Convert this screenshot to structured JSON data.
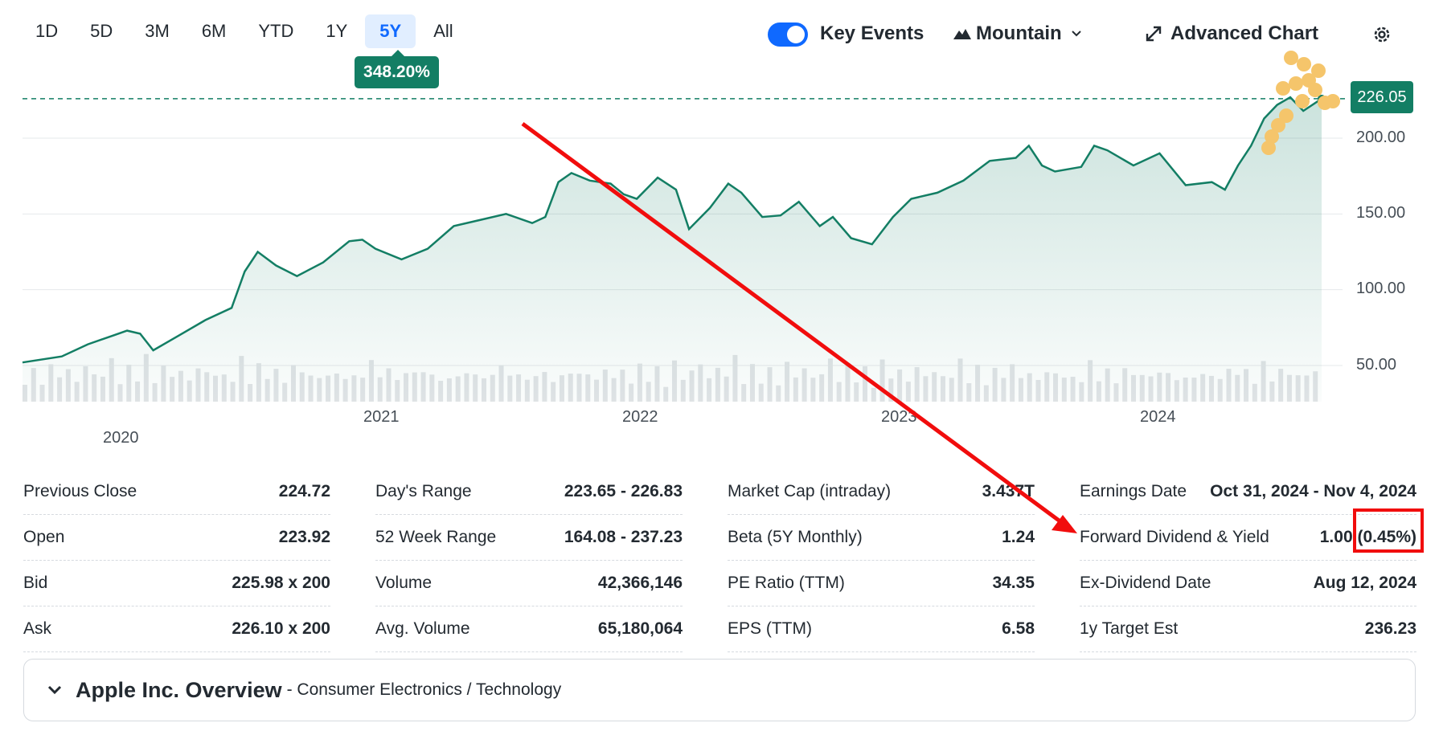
{
  "toolbar": {
    "periods": [
      "1D",
      "5D",
      "3M",
      "6M",
      "YTD",
      "1Y",
      "5Y",
      "All"
    ],
    "active_period": "5Y",
    "change_badge": "348.20%",
    "key_events_label": "Key Events",
    "key_events_on": true,
    "chart_type_label": "Mountain",
    "advanced_label": "Advanced Chart"
  },
  "chart_data": {
    "type": "area",
    "current_price_label": "226.05",
    "current_price": 226.05,
    "y_ticks": [
      "200.00",
      "150.00",
      "100.00",
      "50.00"
    ],
    "x_ticks": [
      "2020",
      "2021",
      "2022",
      "2023",
      "2024"
    ],
    "ylim": [
      30,
      240
    ],
    "x": [
      2019.75,
      2019.9,
      2020.0,
      2020.1,
      2020.15,
      2020.2,
      2020.25,
      2020.35,
      2020.45,
      2020.55,
      2020.6,
      2020.65,
      2020.72,
      2020.8,
      2020.9,
      2021.0,
      2021.05,
      2021.1,
      2021.2,
      2021.3,
      2021.4,
      2021.5,
      2021.6,
      2021.7,
      2021.75,
      2021.8,
      2021.85,
      2021.92,
      2022.0,
      2022.05,
      2022.1,
      2022.18,
      2022.25,
      2022.3,
      2022.38,
      2022.45,
      2022.5,
      2022.58,
      2022.65,
      2022.72,
      2022.8,
      2022.85,
      2022.92,
      2023.0,
      2023.08,
      2023.15,
      2023.25,
      2023.35,
      2023.45,
      2023.55,
      2023.6,
      2023.65,
      2023.7,
      2023.8,
      2023.85,
      2023.9,
      2024.0,
      2024.1,
      2024.2,
      2024.3,
      2024.35,
      2024.4,
      2024.45,
      2024.5,
      2024.55,
      2024.6,
      2024.65,
      2024.72
    ],
    "prices": [
      52,
      56,
      64,
      70,
      73,
      71,
      60,
      70,
      80,
      88,
      112,
      125,
      116,
      109,
      118,
      132,
      133,
      127,
      120,
      127,
      142,
      146,
      150,
      144,
      148,
      171,
      177,
      172,
      170,
      163,
      160,
      174,
      166,
      140,
      154,
      170,
      164,
      148,
      149,
      158,
      142,
      148,
      134,
      130,
      148,
      160,
      164,
      172,
      185,
      187,
      195,
      182,
      178,
      181,
      195,
      192,
      182,
      190,
      169,
      171,
      166,
      182,
      195,
      213,
      222,
      227,
      218,
      226.05
    ],
    "volumes": [
      35,
      42,
      30,
      48,
      38,
      44,
      28,
      52,
      36,
      41,
      55,
      33,
      46,
      39,
      60,
      31,
      47,
      37,
      43,
      29,
      51,
      38,
      45,
      34,
      40,
      57,
      32,
      49,
      36,
      44,
      27,
      53,
      39,
      42,
      30,
      48,
      35,
      45,
      33,
      41,
      54,
      37,
      46,
      30,
      43,
      38,
      50,
      34,
      41,
      29,
      47,
      36,
      44,
      31,
      39,
      52,
      35,
      43,
      28,
      46,
      37,
      40,
      33,
      49,
      36,
      42,
      30,
      45
    ]
  },
  "stats": {
    "col1": [
      {
        "label": "Previous Close",
        "value": "224.72"
      },
      {
        "label": "Open",
        "value": "223.92"
      },
      {
        "label": "Bid",
        "value": "225.98 x 200"
      },
      {
        "label": "Ask",
        "value": "226.10 x 200"
      }
    ],
    "col2": [
      {
        "label": "Day's Range",
        "value": "223.65 - 226.83"
      },
      {
        "label": "52 Week Range",
        "value": "164.08 - 237.23"
      },
      {
        "label": "Volume",
        "value": "42,366,146"
      },
      {
        "label": "Avg. Volume",
        "value": "65,180,064"
      }
    ],
    "col3": [
      {
        "label": "Market Cap (intraday)",
        "value": "3.437T"
      },
      {
        "label": "Beta (5Y Monthly)",
        "value": "1.24"
      },
      {
        "label": "PE Ratio (TTM)",
        "value": "34.35"
      },
      {
        "label": "EPS (TTM)",
        "value": "6.58"
      }
    ],
    "col4": [
      {
        "label": "Earnings Date",
        "value": "Oct 31, 2024 - Nov 4, 2024"
      },
      {
        "label": "Forward Dividend & Yield",
        "value": "1.00 (0.45%)"
      },
      {
        "label": "Ex-Dividend Date",
        "value": "Aug 12, 2024"
      },
      {
        "label": "1y Target Est",
        "value": "236.23"
      }
    ]
  },
  "overview": {
    "title": "Apple Inc. Overview",
    "subtitle": "- Consumer Electronics / Technology"
  },
  "colors": {
    "line": "#137e64",
    "accent": "#0f69ff",
    "annotation": "#f10d0d",
    "event_dots": "#f5c56b"
  }
}
